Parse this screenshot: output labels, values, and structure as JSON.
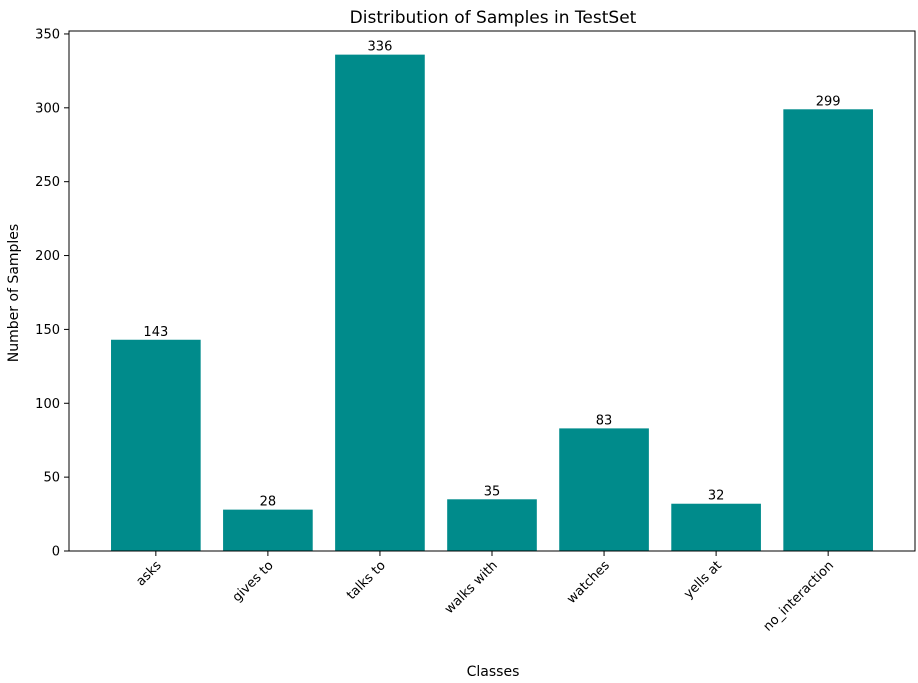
{
  "chart_data": {
    "type": "bar",
    "title": "Distribution of Samples in TestSet",
    "xlabel": "Classes",
    "ylabel": "Number of Samples",
    "categories": [
      "asks",
      "gives to",
      "talks to",
      "walks with",
      "watches",
      "yells at",
      "no_interaction"
    ],
    "values": [
      143,
      28,
      336,
      35,
      83,
      32,
      299
    ],
    "ylim": [
      0,
      352
    ],
    "yticks": [
      0,
      50,
      100,
      150,
      200,
      250,
      300,
      350
    ],
    "grid": false,
    "legend": "none",
    "bar_color": "#008b8b",
    "xtick_rotation": -45
  }
}
